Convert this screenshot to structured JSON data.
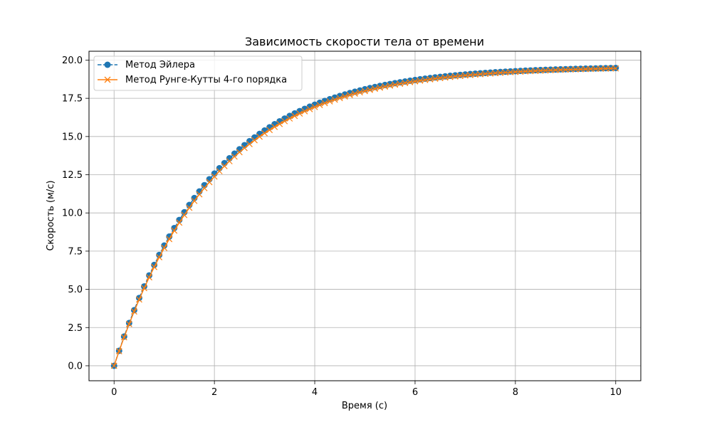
{
  "chart_data": {
    "type": "line",
    "title": "Зависимость скорости тела от времени",
    "xlabel": "Время (с)",
    "ylabel": "Скорость (м/с)",
    "xlim": [
      -0.5,
      10.5
    ],
    "ylim": [
      -0.98,
      20.58
    ],
    "xticks": [
      0,
      2,
      4,
      6,
      8,
      10
    ],
    "xtick_labels": [
      "0",
      "2",
      "4",
      "6",
      "8",
      "10"
    ],
    "yticks": [
      0,
      2.5,
      5,
      7.5,
      10,
      12.5,
      15,
      17.5,
      20
    ],
    "ytick_labels": [
      "0.0",
      "2.5",
      "5.0",
      "7.5",
      "10.0",
      "12.5",
      "15.0",
      "17.5",
      "20.0"
    ],
    "grid": true,
    "legend_position": "top-left",
    "x": [
      0,
      0.1,
      0.2,
      0.3,
      0.4,
      0.5,
      0.6,
      0.7,
      0.8,
      0.9,
      1,
      1.1,
      1.2,
      1.3,
      1.4,
      1.5,
      1.6,
      1.7,
      1.8,
      1.9,
      2,
      2.1,
      2.2,
      2.3,
      2.4,
      2.5,
      2.6,
      2.7,
      2.8,
      2.9,
      3,
      3.1,
      3.2,
      3.3,
      3.4,
      3.5,
      3.6,
      3.7,
      3.8,
      3.9,
      4,
      4.1,
      4.2,
      4.3,
      4.4,
      4.5,
      4.6,
      4.7,
      4.8,
      4.9,
      5,
      5.1,
      5.2,
      5.3,
      5.4,
      5.5,
      5.6,
      5.7,
      5.8,
      5.9,
      6,
      6.1,
      6.2,
      6.3,
      6.4,
      6.5,
      6.6,
      6.7,
      6.8,
      6.9,
      7,
      7.1,
      7.2,
      7.3,
      7.4,
      7.5,
      7.6,
      7.7,
      7.8,
      7.9,
      8,
      8.1,
      8.2,
      8.3,
      8.4,
      8.5,
      8.6,
      8.7,
      8.8,
      8.9,
      9,
      9.1,
      9.2,
      9.3,
      9.4,
      9.5,
      9.6,
      9.7,
      9.8,
      9.9,
      10
    ],
    "series": [
      {
        "name": "Метод Эйлера",
        "color": "#1f77b4",
        "line_style": "dashed",
        "marker": "circle",
        "values": [
          0,
          0.98,
          1.911,
          2.796,
          3.636,
          4.434,
          5.193,
          5.913,
          6.598,
          7.248,
          7.866,
          8.453,
          9.01,
          9.54,
          10.043,
          10.521,
          10.975,
          11.406,
          11.816,
          12.205,
          12.575,
          12.926,
          13.26,
          13.577,
          13.878,
          14.164,
          14.436,
          14.694,
          14.94,
          15.173,
          15.394,
          15.605,
          15.805,
          15.995,
          16.175,
          16.347,
          16.51,
          16.664,
          16.811,
          16.951,
          17.083,
          17.209,
          17.329,
          17.442,
          17.55,
          17.652,
          17.75,
          17.842,
          17.93,
          18.013,
          18.093,
          18.168,
          18.24,
          18.308,
          18.373,
          18.434,
          18.493,
          18.548,
          18.601,
          18.651,
          18.698,
          18.744,
          18.787,
          18.827,
          18.866,
          18.903,
          18.938,
          18.971,
          19.003,
          19.033,
          19.061,
          19.088,
          19.114,
          19.138,
          19.161,
          19.183,
          19.204,
          19.224,
          19.243,
          19.261,
          19.278,
          19.294,
          19.309,
          19.324,
          19.338,
          19.351,
          19.363,
          19.375,
          19.386,
          19.397,
          19.407,
          19.417,
          19.426,
          19.435,
          19.443,
          19.451,
          19.459,
          19.466,
          19.473,
          19.479,
          19.485
        ]
      },
      {
        "name": "Метод Рунге-Кутты 4-го порядка",
        "color": "#ff7f0e",
        "line_style": "solid",
        "marker": "x",
        "values": [
          0,
          0.956,
          1.865,
          2.73,
          3.553,
          4.336,
          5.08,
          5.788,
          6.461,
          7.102,
          7.711,
          8.29,
          8.841,
          9.365,
          9.864,
          10.338,
          10.789,
          11.218,
          11.626,
          12.014,
          12.383,
          12.734,
          13.068,
          13.386,
          13.688,
          13.975,
          14.249,
          14.508,
          14.756,
          14.991,
          15.214,
          15.427,
          15.629,
          15.822,
          16.005,
          16.179,
          16.345,
          16.503,
          16.652,
          16.795,
          16.931,
          17.06,
          17.183,
          17.3,
          17.411,
          17.517,
          17.618,
          17.713,
          17.805,
          17.891,
          17.974,
          18.052,
          18.127,
          18.198,
          18.266,
          18.33,
          18.391,
          18.449,
          18.505,
          18.557,
          18.608,
          18.655,
          18.7,
          18.744,
          18.785,
          18.824,
          18.861,
          18.896,
          18.93,
          18.962,
          18.993,
          19.022,
          19.049,
          19.076,
          19.101,
          19.124,
          19.147,
          19.169,
          19.189,
          19.209,
          19.227,
          19.245,
          19.262,
          19.278,
          19.293,
          19.308,
          19.322,
          19.335,
          19.347,
          19.359,
          19.37,
          19.381,
          19.392,
          19.401,
          19.411,
          19.42,
          19.428,
          19.436,
          19.443,
          19.451,
          19.457
        ]
      }
    ]
  }
}
